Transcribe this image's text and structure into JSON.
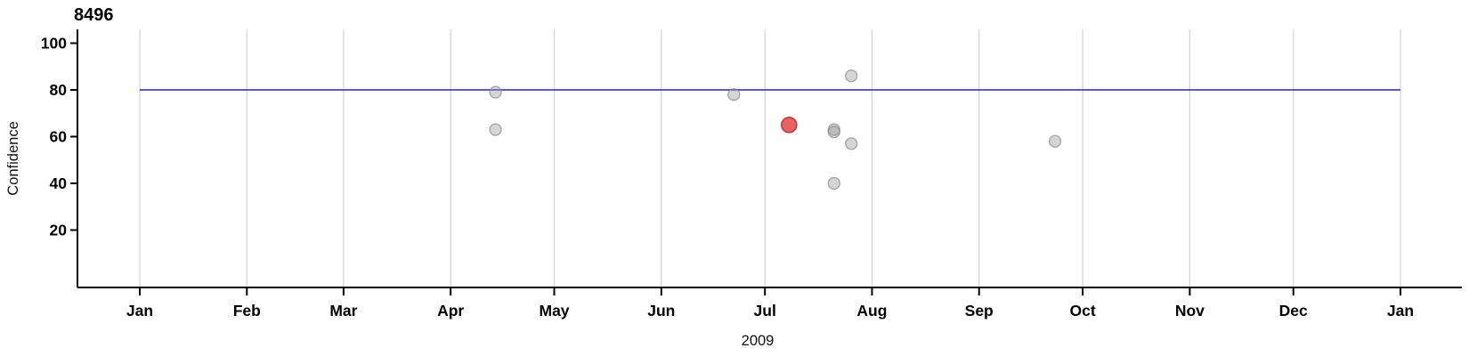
{
  "chart_data": {
    "type": "scatter",
    "title": "8496",
    "xlabel": "2009",
    "ylabel": "Confidence",
    "x_tick_labels": [
      "Jan",
      "Feb",
      "Mar",
      "Apr",
      "May",
      "Jun",
      "Jul",
      "Aug",
      "Sep",
      "Oct",
      "Nov",
      "Dec",
      "Jan"
    ],
    "x_tick_days": [
      0,
      31,
      59,
      90,
      120,
      151,
      181,
      212,
      243,
      273,
      304,
      334,
      365
    ],
    "x_range_days": [
      0,
      365
    ],
    "y_ticks": [
      20,
      40,
      60,
      80,
      100
    ],
    "y_axis_range": [
      0,
      105
    ],
    "grid": "vertical month gridlines only",
    "legend_position": "none",
    "reference_line": {
      "y": 80
    },
    "points": [
      {
        "date": "2009-04-14",
        "day_of_year": 103,
        "confidence": 79,
        "series": "normal"
      },
      {
        "date": "2009-04-14",
        "day_of_year": 103,
        "confidence": 63,
        "series": "normal"
      },
      {
        "date": "2009-06-22",
        "day_of_year": 172,
        "confidence": 78,
        "series": "normal"
      },
      {
        "date": "2009-07-08",
        "day_of_year": 188,
        "confidence": 65,
        "series": "highlighted"
      },
      {
        "date": "2009-07-21",
        "day_of_year": 201,
        "confidence": 63,
        "series": "normal"
      },
      {
        "date": "2009-07-21",
        "day_of_year": 201,
        "confidence": 62,
        "series": "normal"
      },
      {
        "date": "2009-07-21",
        "day_of_year": 201,
        "confidence": 40,
        "series": "normal"
      },
      {
        "date": "2009-07-26",
        "day_of_year": 206,
        "confidence": 86,
        "series": "normal"
      },
      {
        "date": "2009-07-26",
        "day_of_year": 206,
        "confidence": 57,
        "series": "normal"
      },
      {
        "date": "2009-09-23",
        "day_of_year": 265,
        "confidence": 58,
        "series": "normal"
      }
    ],
    "colors": {
      "normal_point_fill": "#9b9b9b",
      "normal_point_stroke": "#8a8a8a",
      "highlighted_point_fill": "#e03c3c",
      "highlighted_point_stroke": "#c42f2f",
      "reference_line": "#2323c8",
      "gridline": "#d6d6d6",
      "axis": "#000000",
      "background": "#ffffff"
    }
  }
}
